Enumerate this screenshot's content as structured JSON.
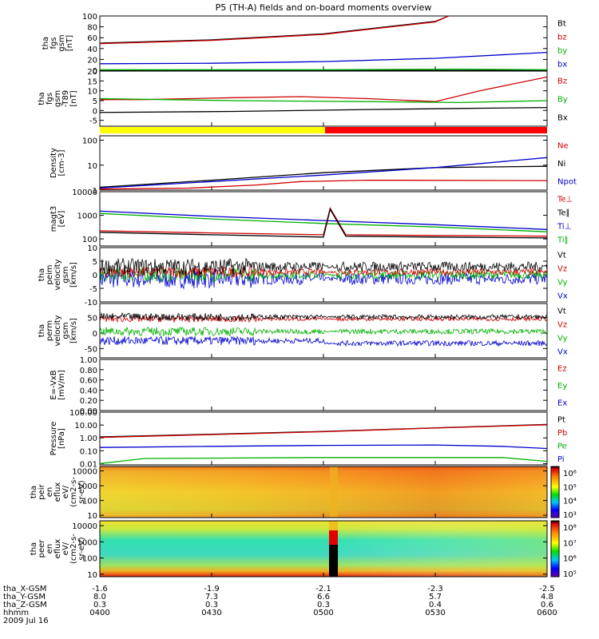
{
  "chart_data": {
    "type": "line",
    "title": "P5 (TH-A) fields and on-board moments overview",
    "time_ticks": [
      "0400",
      "0430",
      "0500",
      "0530",
      "0600"
    ],
    "panels": [
      {
        "id": "fgs_gsm",
        "ylabel": [
          "tha",
          "fgs",
          "gsm",
          "[nT]"
        ],
        "yticks": [
          "100",
          "80",
          "60",
          "40",
          "20",
          "0"
        ],
        "legend": [
          {
            "label": "Bt",
            "color": "#000000"
          },
          {
            "label": "bz",
            "color": "#d00000"
          },
          {
            "label": "by",
            "color": "#00b000"
          },
          {
            "label": "bx",
            "color": "#0000cc"
          }
        ],
        "series": [
          {
            "name": "Bt",
            "color": "#000000",
            "x": [
              0,
              0.25,
              0.5,
              0.75,
              0.78
            ],
            "y": [
              50,
              56,
              67,
              90,
              102
            ]
          },
          {
            "name": "bz",
            "color": "#d00000",
            "x": [
              0,
              0.25,
              0.5,
              0.75,
              0.78
            ],
            "y": [
              49,
              55,
              66,
              89,
              101
            ]
          },
          {
            "name": "by",
            "color": "#00b000",
            "x": [
              0,
              0.5,
              0.8,
              1
            ],
            "y": [
              1,
              1,
              2,
              1
            ]
          },
          {
            "name": "bx",
            "color": "#0000cc",
            "x": [
              0,
              0.25,
              0.5,
              0.75,
              1
            ],
            "y": [
              12,
              13,
              16,
              22,
              33
            ]
          }
        ]
      },
      {
        "id": "fgs_gsm_t89",
        "ylabel": [
          "tha",
          "fgs",
          "gsm",
          "-T89",
          "[nT]"
        ],
        "yticks": [
          "20",
          "15",
          "10",
          "5",
          "0",
          "-5"
        ],
        "legend": [
          {
            "label": "Bz",
            "color": "#d00000"
          },
          {
            "label": "By",
            "color": "#00b000"
          },
          {
            "label": "Bx",
            "color": "#000000"
          }
        ],
        "series": [
          {
            "name": "Bz",
            "color": "#d00000",
            "x": [
              0,
              0.1,
              0.3,
              0.45,
              0.6,
              0.75,
              0.85,
              1
            ],
            "y": [
              5.5,
              5.5,
              6.5,
              7,
              6,
              4.5,
              10,
              17
            ]
          },
          {
            "name": "By",
            "color": "#00b000",
            "x": [
              0,
              0.3,
              0.6,
              0.8,
              1
            ],
            "y": [
              6,
              5,
              4.5,
              4,
              5
            ]
          },
          {
            "name": "Bx",
            "color": "#000000",
            "x": [
              0,
              0.3,
              0.6,
              0.8,
              1
            ],
            "y": [
              -1,
              -0.5,
              0.5,
              1,
              1.5
            ]
          }
        ]
      },
      {
        "id": "density",
        "ylabel": [
          "Density",
          "[cm-3]"
        ],
        "yticks": [
          "100",
          "10",
          "1"
        ],
        "legend": [
          {
            "label": "Ne",
            "color": "#d00000"
          },
          {
            "label": "Ni",
            "color": "#000000"
          },
          {
            "label": "Npot",
            "color": "#0000cc"
          }
        ],
        "series": [
          {
            "name": "Ni",
            "color": "#000000",
            "x": [
              0,
              0.25,
              0.5,
              0.75,
              1
            ],
            "y": [
              1.3,
              2.5,
              5,
              8,
              9
            ]
          },
          {
            "name": "Npot",
            "color": "#0000cc",
            "x": [
              0,
              0.25,
              0.5,
              0.75,
              1
            ],
            "y": [
              1.2,
              2.2,
              4,
              8,
              20
            ]
          },
          {
            "name": "Ne",
            "color": "#d00000",
            "x": [
              0,
              0.2,
              0.35,
              0.45,
              0.6,
              1
            ],
            "y": [
              1.1,
              1.2,
              1.6,
              2.2,
              2.5,
              2.4
            ]
          }
        ]
      },
      {
        "id": "temperature",
        "ylabel": [
          "magt3",
          "[eV]"
        ],
        "yticks": [
          "10000",
          "1000",
          "100"
        ],
        "legend": [
          {
            "label": "Te⊥",
            "color": "#d00000"
          },
          {
            "label": "Te∥",
            "color": "#000000"
          },
          {
            "label": "Ti⊥",
            "color": "#0000cc"
          },
          {
            "label": "Ti∥",
            "color": "#00b000"
          }
        ],
        "series": [
          {
            "name": "Ti⊥",
            "color": "#0000cc",
            "x": [
              0,
              0.25,
              0.5,
              0.75,
              1
            ],
            "y": [
              1500,
              900,
              600,
              400,
              250
            ]
          },
          {
            "name": "Ti∥",
            "color": "#00b000",
            "x": [
              0,
              0.25,
              0.5,
              0.75,
              1
            ],
            "y": [
              1200,
              700,
              450,
              320,
              200
            ]
          },
          {
            "name": "Te⊥",
            "color": "#d00000",
            "x": [
              0,
              0.25,
              0.5,
              0.515,
              0.55,
              0.75,
              1
            ],
            "y": [
              220,
              180,
              150,
              2000,
              150,
              140,
              130
            ]
          },
          {
            "name": "Te∥",
            "color": "#000000",
            "x": [
              0,
              0.25,
              0.5,
              0.515,
              0.55,
              0.75,
              1
            ],
            "y": [
              190,
              150,
              120,
              1800,
              130,
              120,
              110
            ]
          }
        ]
      },
      {
        "id": "peim_velocity",
        "ylabel": [
          "tha",
          "peim",
          "velocity",
          "gsm",
          "[km/s]"
        ],
        "yticks": [
          "10",
          "5",
          "0",
          "-5",
          "-10"
        ],
        "legend": [
          {
            "label": "Vt",
            "color": "#000000"
          },
          {
            "label": "Vz",
            "color": "#d00000"
          },
          {
            "label": "Vy",
            "color": "#00b000"
          },
          {
            "label": "Vx",
            "color": "#0000cc"
          }
        ],
        "series": []
      },
      {
        "id": "perm_velocity",
        "ylabel": [
          "tha",
          "perm",
          "velocity",
          "gsm",
          "[km/s]"
        ],
        "yticks": [
          "50",
          "0",
          "-50"
        ],
        "legend": [
          {
            "label": "Vt",
            "color": "#000000"
          },
          {
            "label": "Vz",
            "color": "#d00000"
          },
          {
            "label": "Vy",
            "color": "#00b000"
          },
          {
            "label": "Vx",
            "color": "#0000cc"
          }
        ],
        "series": []
      },
      {
        "id": "efield",
        "ylabel": [
          "E=-VxB",
          "[mV/m]"
        ],
        "yticks": [
          "1.00",
          "0.80",
          "0.60",
          "0.40",
          "0.20",
          "0.00"
        ],
        "legend": [
          {
            "label": "Ez",
            "color": "#d00000"
          },
          {
            "label": "Ey",
            "color": "#00b000"
          },
          {
            "label": "Ex",
            "color": "#0000cc"
          }
        ],
        "series": []
      },
      {
        "id": "pressure",
        "ylabel": [
          "Pressure",
          "[nPa]"
        ],
        "yticks": [
          "100.00",
          "10.00",
          "1.00",
          "0.10",
          "0.01"
        ],
        "legend": [
          {
            "label": "Pt",
            "color": "#000000"
          },
          {
            "label": "Pb",
            "color": "#d00000"
          },
          {
            "label": "Pe",
            "color": "#00b000"
          },
          {
            "label": "Pi",
            "color": "#0000cc"
          }
        ],
        "series": [
          {
            "name": "Pt",
            "color": "#000000",
            "x": [
              0,
              0.25,
              0.5,
              0.75,
              1
            ],
            "y": [
              1.2,
              1.9,
              3.2,
              6,
              11
            ]
          },
          {
            "name": "Pb",
            "color": "#d00000",
            "x": [
              0,
              0.25,
              0.5,
              0.75,
              1
            ],
            "y": [
              1.1,
              1.8,
              3,
              5.8,
              10.5
            ]
          },
          {
            "name": "Pi",
            "color": "#0000cc",
            "x": [
              0,
              0.25,
              0.5,
              0.75,
              0.9,
              1
            ],
            "y": [
              0.18,
              0.22,
              0.26,
              0.28,
              0.22,
              0.15
            ]
          },
          {
            "name": "Pe",
            "color": "#00b000",
            "x": [
              0,
              0.1,
              0.5,
              0.9,
              1
            ],
            "y": [
              0.01,
              0.025,
              0.03,
              0.03,
              0.015
            ]
          }
        ]
      },
      {
        "id": "peir_eflux",
        "ylabel": [
          "tha",
          "peir",
          "en",
          "eflux",
          "eV/",
          "(cm2-s-",
          "sr-eV)"
        ],
        "yticks": [
          "10000",
          "1000",
          "100",
          "10"
        ],
        "colorbar_ticks": [
          "10⁶",
          "10⁵",
          "10⁴",
          "10³"
        ],
        "series": []
      },
      {
        "id": "peer_eflux",
        "ylabel": [
          "tha",
          "peer",
          "en",
          "eflux",
          "eV/",
          "(cm2-s-",
          "sr-eV)"
        ],
        "yticks": [
          "10000",
          "1000",
          "100",
          "10"
        ],
        "colorbar_ticks": [
          "10⁸",
          "10⁷",
          "10⁶",
          "10⁵"
        ],
        "series": []
      }
    ],
    "ephemeris": {
      "rows": [
        {
          "label": "tha_X-GSM",
          "values": [
            "-1.6",
            "-1.9",
            "-2.1",
            "-2.3",
            "-2.5"
          ]
        },
        {
          "label": "tha_Y-GSM",
          "values": [
            "8.0",
            "7.3",
            "6.6",
            "5.7",
            "4.8"
          ]
        },
        {
          "label": "tha_Z-GSM",
          "values": [
            "0.3",
            "0.3",
            "0.3",
            "0.4",
            "0.6"
          ]
        },
        {
          "label": "hhmm",
          "values": [
            "0400",
            "0430",
            "0500",
            "0530",
            "0600"
          ]
        }
      ],
      "date": "2009 Jul 16"
    }
  }
}
